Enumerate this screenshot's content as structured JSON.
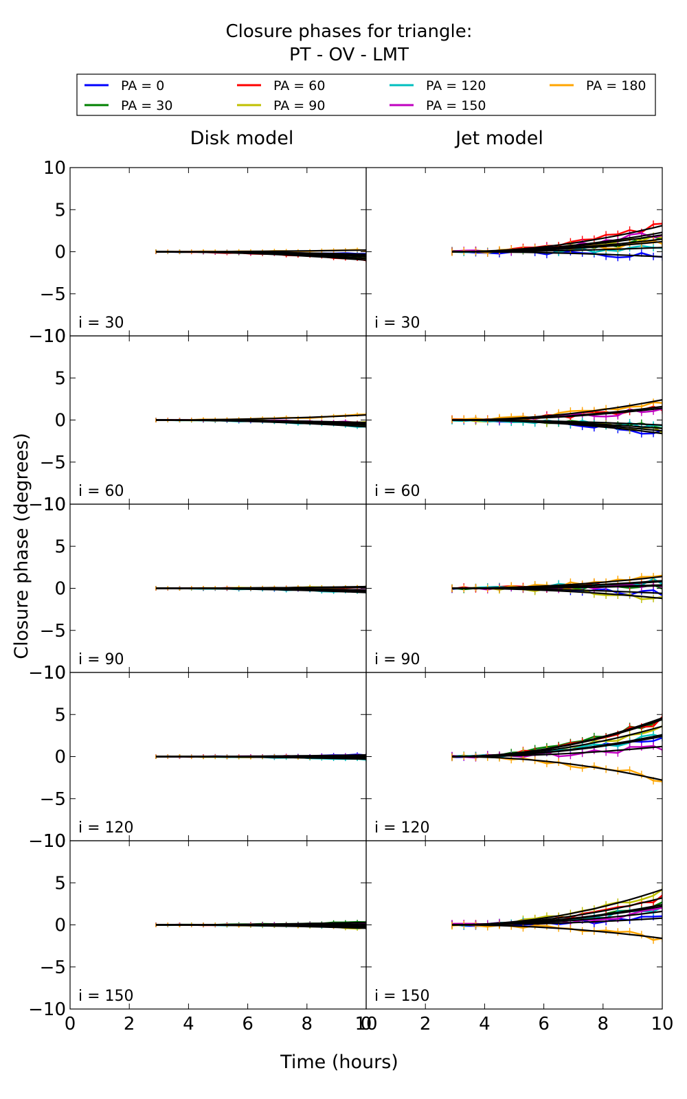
{
  "figure": {
    "title_line1": "Closure phases for triangle:",
    "title_line2": "PT - OV - LMT",
    "xlabel": "Time (hours)",
    "ylabel": "Closure phase (degrees)",
    "col_titles": [
      "Disk model",
      "Jet model"
    ]
  },
  "legend": {
    "placement": "top",
    "entries": [
      {
        "label": "PA = 0",
        "color": "#0000ff"
      },
      {
        "label": "PA = 30",
        "color": "#008000"
      },
      {
        "label": "PA = 60",
        "color": "#ff0000"
      },
      {
        "label": "PA = 90",
        "color": "#bfbf00"
      },
      {
        "label": "PA = 120",
        "color": "#00bfbf"
      },
      {
        "label": "PA = 150",
        "color": "#bf00bf"
      },
      {
        "label": "PA = 180",
        "color": "#ffa500"
      }
    ]
  },
  "chart_data": {
    "type": "line",
    "xlim": [
      0,
      10
    ],
    "ylim": [
      -10,
      10
    ],
    "xticks": [
      0,
      2,
      4,
      6,
      8,
      10
    ],
    "yticks": [
      -10,
      -5,
      0,
      5,
      10
    ],
    "grid": false,
    "x": [
      2.9,
      3.3,
      3.7,
      4.1,
      4.5,
      4.9,
      5.3,
      5.7,
      6.1,
      6.5,
      6.9,
      7.3,
      7.7,
      8.1,
      8.5,
      8.9,
      9.3,
      9.7,
      10.0
    ],
    "rows": [
      "i = 30",
      "i = 60",
      "i = 90",
      "i = 120",
      "i = 150"
    ],
    "columns": [
      "Disk model",
      "Jet model"
    ],
    "panels": [
      {
        "model": "Disk model",
        "label": "i = 30",
        "series": [
          {
            "name": "PA = 0",
            "end": -0.3
          },
          {
            "name": "PA = 30",
            "end": -0.8
          },
          {
            "name": "PA = 60",
            "end": -1.0
          },
          {
            "name": "PA = 90",
            "end": -0.6
          },
          {
            "name": "PA = 120",
            "end": -0.4
          },
          {
            "name": "PA = 150",
            "end": -0.5
          },
          {
            "name": "PA = 180",
            "end": 0.2
          }
        ]
      },
      {
        "model": "Jet model",
        "label": "i = 30",
        "series": [
          {
            "name": "PA = 0",
            "end": -0.6
          },
          {
            "name": "PA = 30",
            "end": 1.5
          },
          {
            "name": "PA = 60",
            "end": 3.1
          },
          {
            "name": "PA = 90",
            "end": 2.0
          },
          {
            "name": "PA = 120",
            "end": 0.5
          },
          {
            "name": "PA = 150",
            "end": 2.3
          },
          {
            "name": "PA = 180",
            "end": 1.2
          }
        ]
      },
      {
        "model": "Disk model",
        "label": "i = 60",
        "series": [
          {
            "name": "PA = 0",
            "end": -0.5
          },
          {
            "name": "PA = 30",
            "end": -0.6
          },
          {
            "name": "PA = 60",
            "end": -0.4
          },
          {
            "name": "PA = 90",
            "end": -0.3
          },
          {
            "name": "PA = 120",
            "end": -0.8
          },
          {
            "name": "PA = 150",
            "end": -0.3
          },
          {
            "name": "PA = 180",
            "end": 0.6
          }
        ]
      },
      {
        "model": "Jet model",
        "label": "i = 60",
        "series": [
          {
            "name": "PA = 0",
            "end": -1.6
          },
          {
            "name": "PA = 30",
            "end": -0.6
          },
          {
            "name": "PA = 60",
            "end": 1.6
          },
          {
            "name": "PA = 90",
            "end": -1.3
          },
          {
            "name": "PA = 120",
            "end": -1.0
          },
          {
            "name": "PA = 150",
            "end": 1.4
          },
          {
            "name": "PA = 180",
            "end": 2.4
          }
        ]
      },
      {
        "model": "Disk model",
        "label": "i = 90",
        "series": [
          {
            "name": "PA = 0",
            "end": -0.3
          },
          {
            "name": "PA = 30",
            "end": -0.4
          },
          {
            "name": "PA = 60",
            "end": 0.1
          },
          {
            "name": "PA = 90",
            "end": 0.2
          },
          {
            "name": "PA = 120",
            "end": -0.5
          },
          {
            "name": "PA = 150",
            "end": -0.2
          },
          {
            "name": "PA = 180",
            "end": 0.2
          }
        ]
      },
      {
        "model": "Jet model",
        "label": "i = 90",
        "series": [
          {
            "name": "PA = 0",
            "end": -0.6
          },
          {
            "name": "PA = 30",
            "end": 0.3
          },
          {
            "name": "PA = 60",
            "end": 0.8
          },
          {
            "name": "PA = 90",
            "end": -1.2
          },
          {
            "name": "PA = 120",
            "end": 0.9
          },
          {
            "name": "PA = 150",
            "end": 0.4
          },
          {
            "name": "PA = 180",
            "end": 1.4
          }
        ]
      },
      {
        "model": "Disk model",
        "label": "i = 120",
        "series": [
          {
            "name": "PA = 0",
            "end": 0.2
          },
          {
            "name": "PA = 30",
            "end": 0.0
          },
          {
            "name": "PA = 60",
            "end": -0.1
          },
          {
            "name": "PA = 90",
            "end": -0.2
          },
          {
            "name": "PA = 120",
            "end": -0.3
          },
          {
            "name": "PA = 150",
            "end": 0.1
          },
          {
            "name": "PA = 180",
            "end": -0.1
          }
        ]
      },
      {
        "model": "Jet model",
        "label": "i = 120",
        "series": [
          {
            "name": "PA = 0",
            "end": 2.4
          },
          {
            "name": "PA = 30",
            "end": 4.6
          },
          {
            "name": "PA = 60",
            "end": 4.4
          },
          {
            "name": "PA = 90",
            "end": 3.6
          },
          {
            "name": "PA = 120",
            "end": 2.6
          },
          {
            "name": "PA = 150",
            "end": 1.2
          },
          {
            "name": "PA = 180",
            "end": -2.8
          }
        ]
      },
      {
        "model": "Disk model",
        "label": "i = 150",
        "series": [
          {
            "name": "PA = 0",
            "end": -0.1
          },
          {
            "name": "PA = 30",
            "end": 0.3
          },
          {
            "name": "PA = 60",
            "end": -0.2
          },
          {
            "name": "PA = 90",
            "end": -0.4
          },
          {
            "name": "PA = 120",
            "end": -0.3
          },
          {
            "name": "PA = 150",
            "end": 0.1
          },
          {
            "name": "PA = 180",
            "end": -0.2
          }
        ]
      },
      {
        "model": "Jet model",
        "label": "i = 150",
        "series": [
          {
            "name": "PA = 0",
            "end": 0.8
          },
          {
            "name": "PA = 30",
            "end": 2.4
          },
          {
            "name": "PA = 60",
            "end": 3.2
          },
          {
            "name": "PA = 90",
            "end": 4.2
          },
          {
            "name": "PA = 120",
            "end": 2.2
          },
          {
            "name": "PA = 150",
            "end": 1.6
          },
          {
            "name": "PA = 180",
            "end": -1.6
          }
        ]
      }
    ]
  }
}
